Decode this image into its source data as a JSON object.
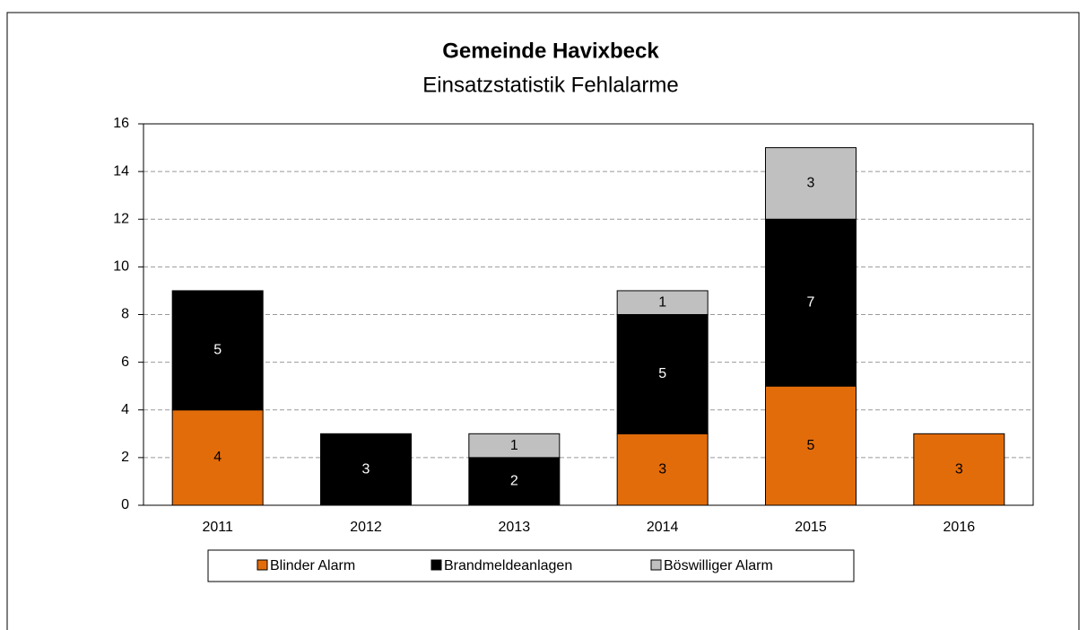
{
  "chart_data": {
    "type": "stacked_bar",
    "title": "Gemeinde Havixbeck",
    "subtitle": "Einsatzstatistik Fehlalarme",
    "categories": [
      "2011",
      "2012",
      "2013",
      "2014",
      "2015",
      "2016"
    ],
    "series": [
      {
        "name": "Blinder Alarm",
        "color": "#e36c0a",
        "values": [
          4,
          0,
          0,
          3,
          5,
          3
        ]
      },
      {
        "name": "Brandmeldeanlagen",
        "color": "#000000",
        "values": [
          5,
          3,
          2,
          5,
          7,
          0
        ]
      },
      {
        "name": "Böswilliger Alarm",
        "color": "#c0c0c0",
        "values": [
          0,
          0,
          1,
          1,
          3,
          0
        ]
      }
    ],
    "ylim": [
      0,
      16
    ],
    "yticks": [
      0,
      2,
      4,
      6,
      8,
      10,
      12,
      14,
      16
    ],
    "grid": true,
    "legend": "bottom"
  }
}
